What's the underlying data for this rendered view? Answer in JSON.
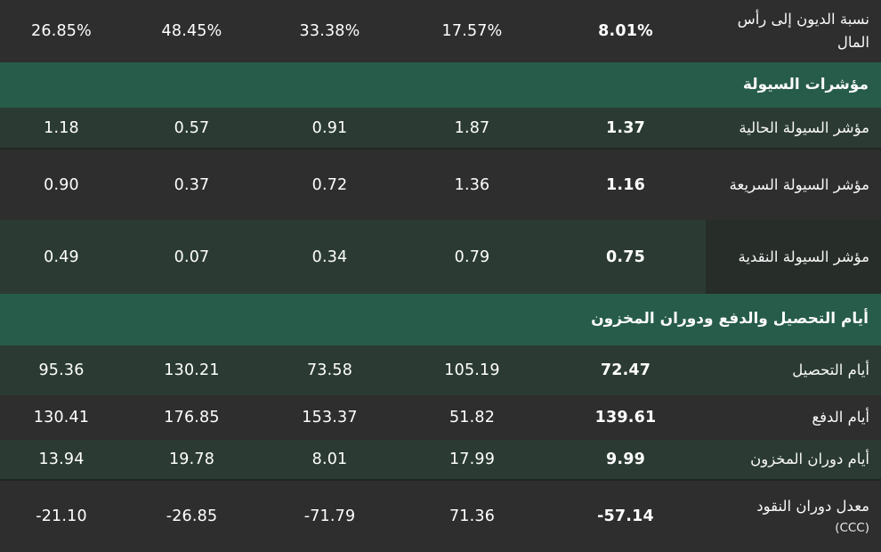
{
  "table": {
    "description_note": "financial-ratios-table-rtl",
    "bold_column_index": 4,
    "rows": [
      {
        "type": "data",
        "shade": "dark",
        "label": "نسبة الديون إلى رأس المال",
        "values": [
          "26.85%",
          "48.45%",
          "33.38%",
          "17.57%",
          "8.01%"
        ]
      },
      {
        "type": "section",
        "label": "مؤشرات السيولة"
      },
      {
        "type": "data",
        "shade": "green",
        "divider": true,
        "label": "مؤشر السيولة الحالية",
        "values": [
          "1.18",
          "0.57",
          "0.91",
          "1.87",
          "1.37"
        ]
      },
      {
        "type": "data",
        "shade": "dark",
        "label": "مؤشر السيولة السريعة",
        "values": [
          "0.90",
          "0.37",
          "0.72",
          "1.36",
          "1.16"
        ]
      },
      {
        "type": "data",
        "shade": "green",
        "label_dim": true,
        "label": "مؤشر السيولة النقدية",
        "values": [
          "0.49",
          "0.07",
          "0.34",
          "0.79",
          "0.75"
        ]
      },
      {
        "type": "section",
        "label": "أيام التحصيل والدفع ودوران المخزون"
      },
      {
        "type": "data",
        "shade": "green",
        "label": "أيام التحصيل",
        "values": [
          "95.36",
          "130.21",
          "73.58",
          "105.19",
          "72.47"
        ]
      },
      {
        "type": "data",
        "shade": "dark",
        "label": "أيام الدفع",
        "values": [
          "130.41",
          "176.85",
          "153.37",
          "51.82",
          "139.61"
        ]
      },
      {
        "type": "data",
        "shade": "green",
        "divider": true,
        "label": "أيام دوران المخزون",
        "values": [
          "13.94",
          "19.78",
          "8.01",
          "17.99",
          "9.99"
        ]
      },
      {
        "type": "data",
        "shade": "dark",
        "label": "معدل دوران النقود",
        "sublabel": "(CCC)",
        "values": [
          "-21.10",
          "-26.85",
          "-71.79",
          "71.36",
          "-57.14"
        ]
      }
    ]
  },
  "colors": {
    "row_dark": "#2e2e2e",
    "row_green": "#2b3b33",
    "section_green": "#265c49",
    "label_dim": "#272d29",
    "divider": "#1f2722",
    "text": "#ffffff"
  }
}
